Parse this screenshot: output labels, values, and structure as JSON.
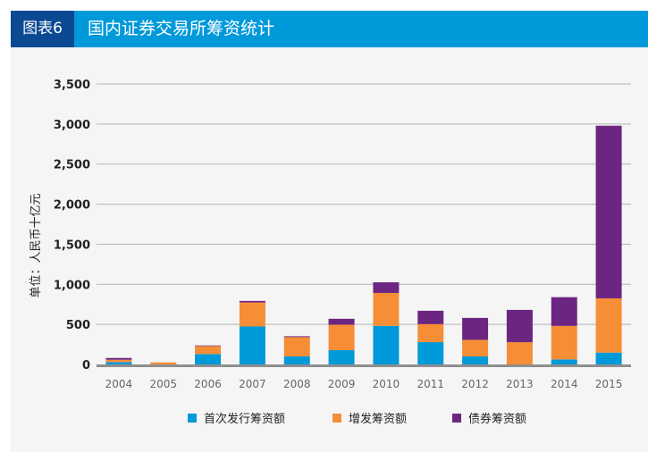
{
  "header": {
    "figure_label": "图表6",
    "title": "国内证券交易所筹资统计"
  },
  "chart_data": {
    "type": "bar",
    "stacked": true,
    "title": "国内证券交易所筹资统计",
    "ylabel": "单位：人民币十亿元",
    "xlabel": "",
    "ylim": [
      0,
      3500
    ],
    "yticks": [
      0,
      500,
      1000,
      1500,
      2000,
      2500,
      3000,
      3500
    ],
    "ytick_labels": [
      "0",
      "500",
      "1,000",
      "1,500",
      "2,000",
      "2,500",
      "3,000",
      "3,500"
    ],
    "grid": true,
    "legend_position": "bottom",
    "categories": [
      "2004",
      "2005",
      "2006",
      "2007",
      "2008",
      "2009",
      "2010",
      "2011",
      "2012",
      "2013",
      "2014",
      "2015"
    ],
    "series": [
      {
        "name": "首次发行筹资额",
        "color": "#0099da",
        "values": [
          30,
          0,
          130,
          474,
          100,
          178,
          481,
          278,
          100,
          0,
          63,
          148
        ]
      },
      {
        "name": "增发筹资额",
        "color": "#f68e37",
        "values": [
          29,
          26,
          100,
          300,
          241,
          318,
          411,
          225,
          207,
          278,
          418,
          677
        ]
      },
      {
        "name": "债券筹资额",
        "color": "#6c2681",
        "values": [
          22,
          0,
          7,
          19,
          11,
          74,
          133,
          167,
          274,
          403,
          359,
          2154
        ]
      }
    ]
  }
}
